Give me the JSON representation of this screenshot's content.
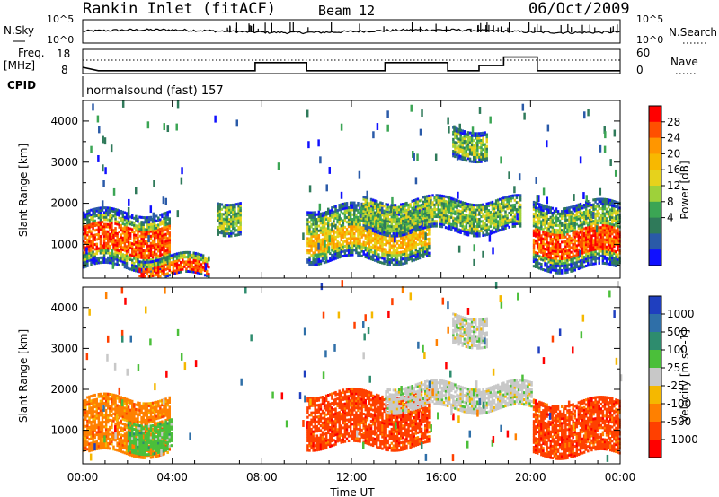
{
  "header": {
    "station": "Rankin Inlet (fitACF)",
    "beam": "Beam 12",
    "date": "06/Oct/2009"
  },
  "noise_panel": {
    "left_label": "N.Sky",
    "right_label": "N.Search",
    "left_ticks": [
      "10^5",
      "10^0"
    ],
    "right_ticks": [
      "10^5",
      "10^0"
    ]
  },
  "freq_panel": {
    "left_label_1": "Freq.",
    "left_label_2": "[MHz]",
    "right_label": "Nave",
    "left_ticks": [
      "18",
      "8"
    ],
    "right_ticks": [
      "60",
      "0"
    ]
  },
  "cpid": {
    "label": "CPID",
    "program": "normalsound (fast) 157"
  },
  "chart_data": [
    {
      "type": "heatmap",
      "title": "Power",
      "ylabel": "Slant Range [km]",
      "xlabel": "",
      "ylim": [
        180,
        4500
      ],
      "yticks": [
        "1000",
        "2000",
        "3000",
        "4000"
      ],
      "colorbar_label": "Power [dB]",
      "colorbar_ticks": [
        "28",
        "24",
        "20",
        "16",
        "12",
        "8",
        "4"
      ],
      "colorbar_colors": [
        "#ff0000",
        "#ff5000",
        "#ff9600",
        "#f8b800",
        "#e6d21c",
        "#9ed13a",
        "#3ba554",
        "#2f7a5a",
        "#2a5aa8",
        "#1010ff"
      ],
      "x": [
        "00:00",
        "04:00",
        "08:00",
        "12:00",
        "16:00",
        "20:00",
        "00:00"
      ],
      "echo_regions": [
        {
          "t": [
            0.0,
            3.9
          ],
          "range": [
            420,
            1750
          ],
          "core": [
            750,
            1450
          ],
          "level": "high"
        },
        {
          "t": [
            2.5,
            5.6
          ],
          "range": [
            200,
            700
          ],
          "core": [
            200,
            500
          ],
          "level": "high"
        },
        {
          "t": [
            6.0,
            7.0
          ],
          "range": [
            1300,
            2100
          ],
          "core": null,
          "level": "low"
        },
        {
          "t": [
            10.0,
            15.5
          ],
          "range": [
            600,
            1900
          ],
          "core": [
            850,
            1300
          ],
          "level": "mid"
        },
        {
          "t": [
            12.5,
            19.5
          ],
          "range": [
            1300,
            2100
          ],
          "core": null,
          "level": "low"
        },
        {
          "t": [
            20.1,
            24.0
          ],
          "range": [
            400,
            2000
          ],
          "core": [
            700,
            1350
          ],
          "level": "high"
        },
        {
          "t": [
            16.5,
            18.0
          ],
          "range": [
            3100,
            3800
          ],
          "core": null,
          "level": "low"
        }
      ]
    },
    {
      "type": "heatmap",
      "title": "Velocity",
      "ylabel": "Slant Range [km]",
      "xlabel": "Time UT",
      "ylim": [
        180,
        4500
      ],
      "yticks": [
        "1000",
        "2000",
        "3000",
        "4000"
      ],
      "colorbar_label": "Velocity [m s^-1]",
      "colorbar_ticks": [
        "1000",
        "500",
        "100",
        "25",
        "-25",
        "-100",
        "-500",
        "-1000"
      ],
      "colorbar_colors": [
        "#1f3fbf",
        "#2f6fa8",
        "#2e8c6e",
        "#4bbf3a",
        "#c8c8c8",
        "#f5b800",
        "#ff8000",
        "#ff4000",
        "#ff0000"
      ],
      "x": [
        "00:00",
        "04:00",
        "08:00",
        "12:00",
        "16:00",
        "20:00",
        "00:00"
      ],
      "echo_regions": [
        {
          "t": [
            0.0,
            3.9
          ],
          "range": [
            420,
            1750
          ],
          "dominant": "-100"
        },
        {
          "t": [
            2.0,
            4.0
          ],
          "range": [
            500,
            1200
          ],
          "dominant": "100"
        },
        {
          "t": [
            10.0,
            15.5
          ],
          "range": [
            600,
            1900
          ],
          "dominant": "-500"
        },
        {
          "t": [
            13.5,
            20.0
          ],
          "range": [
            1500,
            2100
          ],
          "dominant": "25"
        },
        {
          "t": [
            20.1,
            24.0
          ],
          "range": [
            400,
            1700
          ],
          "dominant": "-500"
        },
        {
          "t": [
            16.5,
            18.0
          ],
          "range": [
            3100,
            3800
          ],
          "dominant": "25"
        }
      ]
    }
  ]
}
